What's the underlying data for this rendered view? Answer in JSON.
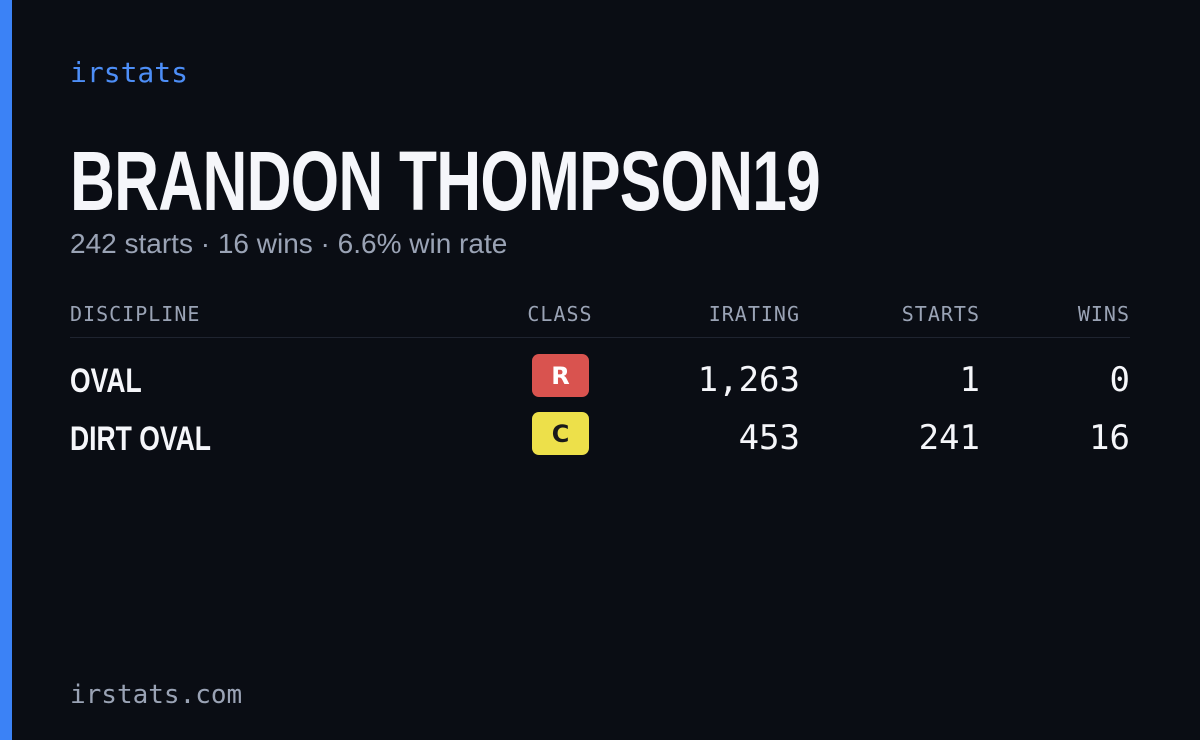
{
  "brand": "irstats",
  "title": "BRANDON THOMPSON19",
  "subtitle": "242 starts · 16 wins · 6.6% win rate",
  "table": {
    "headers": [
      "DISCIPLINE",
      "CLASS",
      "IRATING",
      "STARTS",
      "WINS"
    ],
    "rows": [
      {
        "discipline": "OVAL",
        "class": {
          "label": "R",
          "color": "#d9534f"
        },
        "irating": "1,263",
        "starts": "1",
        "wins": "0"
      },
      {
        "discipline": "DIRT OVAL",
        "class": {
          "label": "C",
          "color": "#ede04a"
        },
        "irating": "453",
        "starts": "241",
        "wins": "16"
      }
    ]
  },
  "footer": "irstats.com"
}
